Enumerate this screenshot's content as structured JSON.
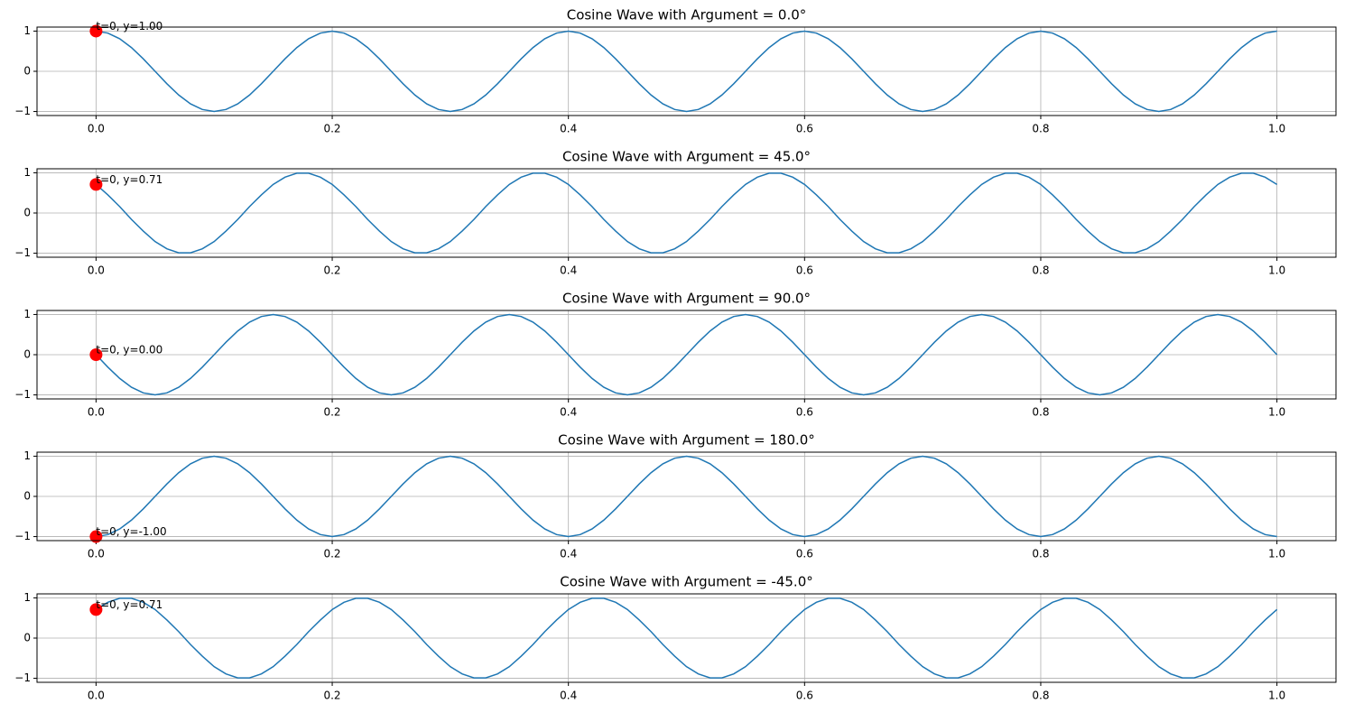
{
  "chart_data": [
    {
      "type": "line",
      "title": "Cosine Wave with Argument = 0.0°",
      "color": "#1f77b4",
      "grid": true,
      "xlim": [
        -0.05,
        1.05
      ],
      "ylim": [
        -1.1,
        1.1
      ],
      "xticks": [
        {
          "value": 0,
          "label": "0.0"
        },
        0.2,
        0.4,
        0.6,
        0.8,
        {
          "value": 1,
          "label": "1.0"
        }
      ],
      "yticks": [
        {
          "value": -1,
          "label": "−1"
        },
        0,
        1
      ],
      "x": [
        0,
        0.01,
        0.02,
        0.03,
        0.04,
        0.05,
        0.06,
        0.07,
        0.08,
        0.09,
        0.1,
        0.11,
        0.12,
        0.13,
        0.14,
        0.15,
        0.16,
        0.17,
        0.18,
        0.19,
        0.2,
        0.21,
        0.22,
        0.23,
        0.24,
        0.25,
        0.26,
        0.27,
        0.28,
        0.29,
        0.3,
        0.31,
        0.32,
        0.33,
        0.34,
        0.35,
        0.36,
        0.37,
        0.38,
        0.39,
        0.4,
        0.41,
        0.42,
        0.43,
        0.44,
        0.45,
        0.46,
        0.47,
        0.48,
        0.49,
        0.5,
        0.51,
        0.52,
        0.53,
        0.54,
        0.55,
        0.56,
        0.57,
        0.58,
        0.59,
        0.6,
        0.61,
        0.62,
        0.63,
        0.64,
        0.65,
        0.66,
        0.67,
        0.68,
        0.69,
        0.7,
        0.71,
        0.72,
        0.73,
        0.74,
        0.75,
        0.76,
        0.77,
        0.78,
        0.79,
        0.8,
        0.81,
        0.82,
        0.83,
        0.84,
        0.85,
        0.86,
        0.87,
        0.88,
        0.89,
        0.9,
        0.91,
        0.92,
        0.93,
        0.94,
        0.95,
        0.96,
        0.97,
        0.98,
        0.99,
        1
      ],
      "values": [
        1,
        0.95,
        0.81,
        0.59,
        0.31,
        0,
        -0.31,
        -0.59,
        -0.81,
        -0.95,
        -1,
        -0.95,
        -0.81,
        -0.59,
        -0.31,
        0,
        0.31,
        0.59,
        0.81,
        0.95,
        1,
        0.95,
        0.81,
        0.59,
        0.31,
        0,
        -0.31,
        -0.59,
        -0.81,
        -0.95,
        -1,
        -0.95,
        -0.81,
        -0.59,
        -0.31,
        0,
        0.31,
        0.59,
        0.81,
        0.95,
        1,
        0.95,
        0.81,
        0.59,
        0.31,
        0,
        -0.31,
        -0.59,
        -0.81,
        -0.95,
        -1,
        -0.95,
        -0.81,
        -0.59,
        -0.31,
        0,
        0.31,
        0.59,
        0.81,
        0.95,
        1,
        0.95,
        0.81,
        0.59,
        0.31,
        0,
        -0.31,
        -0.59,
        -0.81,
        -0.95,
        -1,
        -0.95,
        -0.81,
        -0.59,
        -0.31,
        0,
        0.31,
        0.59,
        0.81,
        0.95,
        1,
        0.95,
        0.81,
        0.59,
        0.31,
        0,
        -0.31,
        -0.59,
        -0.81,
        -0.95,
        -1,
        -0.95,
        -0.81,
        -0.59,
        -0.31,
        0,
        0.31,
        0.59,
        0.81,
        0.95,
        1
      ],
      "annotations": [
        {
          "text": "t=0, y=1.00",
          "x": 0,
          "y": 1,
          "color": "#ff0000"
        }
      ]
    },
    {
      "type": "line",
      "title": "Cosine Wave with Argument = 45.0°",
      "color": "#1f77b4",
      "grid": true,
      "xlim": [
        -0.05,
        1.05
      ],
      "ylim": [
        -1.1,
        1.1
      ],
      "xticks": [
        {
          "value": 0,
          "label": "0.0"
        },
        0.2,
        0.4,
        0.6,
        0.8,
        {
          "value": 1,
          "label": "1.0"
        }
      ],
      "yticks": [
        {
          "value": -1,
          "label": "−1"
        },
        0,
        1
      ],
      "x": [
        0,
        0.01,
        0.02,
        0.03,
        0.04,
        0.05,
        0.06,
        0.07,
        0.08,
        0.09,
        0.1,
        0.11,
        0.12,
        0.13,
        0.14,
        0.15,
        0.16,
        0.17,
        0.18,
        0.19,
        0.2,
        0.21,
        0.22,
        0.23,
        0.24,
        0.25,
        0.26,
        0.27,
        0.28,
        0.29,
        0.3,
        0.31,
        0.32,
        0.33,
        0.34,
        0.35,
        0.36,
        0.37,
        0.38,
        0.39,
        0.4,
        0.41,
        0.42,
        0.43,
        0.44,
        0.45,
        0.46,
        0.47,
        0.48,
        0.49,
        0.5,
        0.51,
        0.52,
        0.53,
        0.54,
        0.55,
        0.56,
        0.57,
        0.58,
        0.59,
        0.6,
        0.61,
        0.62,
        0.63,
        0.64,
        0.65,
        0.66,
        0.67,
        0.68,
        0.69,
        0.7,
        0.71,
        0.72,
        0.73,
        0.74,
        0.75,
        0.76,
        0.77,
        0.78,
        0.79,
        0.8,
        0.81,
        0.82,
        0.83,
        0.84,
        0.85,
        0.86,
        0.87,
        0.88,
        0.89,
        0.9,
        0.91,
        0.92,
        0.93,
        0.94,
        0.95,
        0.96,
        0.97,
        0.98,
        0.99,
        1
      ],
      "values": [
        0.71,
        0.45,
        0.16,
        -0.16,
        -0.45,
        -0.71,
        -0.89,
        -0.99,
        -0.99,
        -0.89,
        -0.71,
        -0.45,
        -0.16,
        0.16,
        0.45,
        0.71,
        0.89,
        0.99,
        0.99,
        0.89,
        0.71,
        0.45,
        0.16,
        -0.16,
        -0.45,
        -0.71,
        -0.89,
        -0.99,
        -0.99,
        -0.89,
        -0.71,
        -0.45,
        -0.16,
        0.16,
        0.45,
        0.71,
        0.89,
        0.99,
        0.99,
        0.89,
        0.71,
        0.45,
        0.16,
        -0.16,
        -0.45,
        -0.71,
        -0.89,
        -0.99,
        -0.99,
        -0.89,
        -0.71,
        -0.45,
        -0.16,
        0.16,
        0.45,
        0.71,
        0.89,
        0.99,
        0.99,
        0.89,
        0.71,
        0.45,
        0.16,
        -0.16,
        -0.45,
        -0.71,
        -0.89,
        -0.99,
        -0.99,
        -0.89,
        -0.71,
        -0.45,
        -0.16,
        0.16,
        0.45,
        0.71,
        0.89,
        0.99,
        0.99,
        0.89,
        0.71,
        0.45,
        0.16,
        -0.16,
        -0.45,
        -0.71,
        -0.89,
        -0.99,
        -0.99,
        -0.89,
        -0.71,
        -0.45,
        -0.16,
        0.16,
        0.45,
        0.71,
        0.89,
        0.99,
        0.99,
        0.89,
        0.71
      ],
      "annotations": [
        {
          "text": "t=0, y=0.71",
          "x": 0,
          "y": 0.71,
          "color": "#ff0000"
        }
      ]
    },
    {
      "type": "line",
      "title": "Cosine Wave with Argument = 90.0°",
      "color": "#1f77b4",
      "grid": true,
      "xlim": [
        -0.05,
        1.05
      ],
      "ylim": [
        -1.1,
        1.1
      ],
      "xticks": [
        {
          "value": 0,
          "label": "0.0"
        },
        0.2,
        0.4,
        0.6,
        0.8,
        {
          "value": 1,
          "label": "1.0"
        }
      ],
      "yticks": [
        {
          "value": -1,
          "label": "−1"
        },
        0,
        1
      ],
      "x": [
        0,
        0.01,
        0.02,
        0.03,
        0.04,
        0.05,
        0.06,
        0.07,
        0.08,
        0.09,
        0.1,
        0.11,
        0.12,
        0.13,
        0.14,
        0.15,
        0.16,
        0.17,
        0.18,
        0.19,
        0.2,
        0.21,
        0.22,
        0.23,
        0.24,
        0.25,
        0.26,
        0.27,
        0.28,
        0.29,
        0.3,
        0.31,
        0.32,
        0.33,
        0.34,
        0.35,
        0.36,
        0.37,
        0.38,
        0.39,
        0.4,
        0.41,
        0.42,
        0.43,
        0.44,
        0.45,
        0.46,
        0.47,
        0.48,
        0.49,
        0.5,
        0.51,
        0.52,
        0.53,
        0.54,
        0.55,
        0.56,
        0.57,
        0.58,
        0.59,
        0.6,
        0.61,
        0.62,
        0.63,
        0.64,
        0.65,
        0.66,
        0.67,
        0.68,
        0.69,
        0.7,
        0.71,
        0.72,
        0.73,
        0.74,
        0.75,
        0.76,
        0.77,
        0.78,
        0.79,
        0.8,
        0.81,
        0.82,
        0.83,
        0.84,
        0.85,
        0.86,
        0.87,
        0.88,
        0.89,
        0.9,
        0.91,
        0.92,
        0.93,
        0.94,
        0.95,
        0.96,
        0.97,
        0.98,
        0.99,
        1
      ],
      "values": [
        0,
        -0.31,
        -0.59,
        -0.81,
        -0.95,
        -1,
        -0.95,
        -0.81,
        -0.59,
        -0.31,
        0,
        0.31,
        0.59,
        0.81,
        0.95,
        1,
        0.95,
        0.81,
        0.59,
        0.31,
        0,
        -0.31,
        -0.59,
        -0.81,
        -0.95,
        -1,
        -0.95,
        -0.81,
        -0.59,
        -0.31,
        0,
        0.31,
        0.59,
        0.81,
        0.95,
        1,
        0.95,
        0.81,
        0.59,
        0.31,
        0,
        -0.31,
        -0.59,
        -0.81,
        -0.95,
        -1,
        -0.95,
        -0.81,
        -0.59,
        -0.31,
        0,
        0.31,
        0.59,
        0.81,
        0.95,
        1,
        0.95,
        0.81,
        0.59,
        0.31,
        0,
        -0.31,
        -0.59,
        -0.81,
        -0.95,
        -1,
        -0.95,
        -0.81,
        -0.59,
        -0.31,
        0,
        0.31,
        0.59,
        0.81,
        0.95,
        1,
        0.95,
        0.81,
        0.59,
        0.31,
        0,
        -0.31,
        -0.59,
        -0.81,
        -0.95,
        -1,
        -0.95,
        -0.81,
        -0.59,
        -0.31,
        0,
        0.31,
        0.59,
        0.81,
        0.95,
        1,
        0.95,
        0.81,
        0.59,
        0.31,
        0
      ],
      "annotations": [
        {
          "text": "t=0, y=0.00",
          "x": 0,
          "y": 0,
          "color": "#ff0000"
        }
      ]
    },
    {
      "type": "line",
      "title": "Cosine Wave with Argument = 180.0°",
      "color": "#1f77b4",
      "grid": true,
      "xlim": [
        -0.05,
        1.05
      ],
      "ylim": [
        -1.1,
        1.1
      ],
      "xticks": [
        {
          "value": 0,
          "label": "0.0"
        },
        0.2,
        0.4,
        0.6,
        0.8,
        {
          "value": 1,
          "label": "1.0"
        }
      ],
      "yticks": [
        {
          "value": -1,
          "label": "−1"
        },
        0,
        1
      ],
      "x": [
        0,
        0.01,
        0.02,
        0.03,
        0.04,
        0.05,
        0.06,
        0.07,
        0.08,
        0.09,
        0.1,
        0.11,
        0.12,
        0.13,
        0.14,
        0.15,
        0.16,
        0.17,
        0.18,
        0.19,
        0.2,
        0.21,
        0.22,
        0.23,
        0.24,
        0.25,
        0.26,
        0.27,
        0.28,
        0.29,
        0.3,
        0.31,
        0.32,
        0.33,
        0.34,
        0.35,
        0.36,
        0.37,
        0.38,
        0.39,
        0.4,
        0.41,
        0.42,
        0.43,
        0.44,
        0.45,
        0.46,
        0.47,
        0.48,
        0.49,
        0.5,
        0.51,
        0.52,
        0.53,
        0.54,
        0.55,
        0.56,
        0.57,
        0.58,
        0.59,
        0.6,
        0.61,
        0.62,
        0.63,
        0.64,
        0.65,
        0.66,
        0.67,
        0.68,
        0.69,
        0.7,
        0.71,
        0.72,
        0.73,
        0.74,
        0.75,
        0.76,
        0.77,
        0.78,
        0.79,
        0.8,
        0.81,
        0.82,
        0.83,
        0.84,
        0.85,
        0.86,
        0.87,
        0.88,
        0.89,
        0.9,
        0.91,
        0.92,
        0.93,
        0.94,
        0.95,
        0.96,
        0.97,
        0.98,
        0.99,
        1
      ],
      "values": [
        -1,
        -0.95,
        -0.81,
        -0.59,
        -0.31,
        0,
        0.31,
        0.59,
        0.81,
        0.95,
        1,
        0.95,
        0.81,
        0.59,
        0.31,
        0,
        -0.31,
        -0.59,
        -0.81,
        -0.95,
        -1,
        -0.95,
        -0.81,
        -0.59,
        -0.31,
        0,
        0.31,
        0.59,
        0.81,
        0.95,
        1,
        0.95,
        0.81,
        0.59,
        0.31,
        0,
        -0.31,
        -0.59,
        -0.81,
        -0.95,
        -1,
        -0.95,
        -0.81,
        -0.59,
        -0.31,
        0,
        0.31,
        0.59,
        0.81,
        0.95,
        1,
        0.95,
        0.81,
        0.59,
        0.31,
        0,
        -0.31,
        -0.59,
        -0.81,
        -0.95,
        -1,
        -0.95,
        -0.81,
        -0.59,
        -0.31,
        0,
        0.31,
        0.59,
        0.81,
        0.95,
        1,
        0.95,
        0.81,
        0.59,
        0.31,
        0,
        -0.31,
        -0.59,
        -0.81,
        -0.95,
        -1,
        -0.95,
        -0.81,
        -0.59,
        -0.31,
        0,
        0.31,
        0.59,
        0.81,
        0.95,
        1,
        0.95,
        0.81,
        0.59,
        0.31,
        0,
        -0.31,
        -0.59,
        -0.81,
        -0.95,
        -1
      ],
      "annotations": [
        {
          "text": "t=0, y=-1.00",
          "x": 0,
          "y": -1,
          "color": "#ff0000"
        }
      ]
    },
    {
      "type": "line",
      "title": "Cosine Wave with Argument = -45.0°",
      "color": "#1f77b4",
      "grid": true,
      "xlim": [
        -0.05,
        1.05
      ],
      "ylim": [
        -1.1,
        1.1
      ],
      "xticks": [
        {
          "value": 0,
          "label": "0.0"
        },
        0.2,
        0.4,
        0.6,
        0.8,
        {
          "value": 1,
          "label": "1.0"
        }
      ],
      "yticks": [
        {
          "value": -1,
          "label": "−1"
        },
        0,
        1
      ],
      "x": [
        0,
        0.01,
        0.02,
        0.03,
        0.04,
        0.05,
        0.06,
        0.07,
        0.08,
        0.09,
        0.1,
        0.11,
        0.12,
        0.13,
        0.14,
        0.15,
        0.16,
        0.17,
        0.18,
        0.19,
        0.2,
        0.21,
        0.22,
        0.23,
        0.24,
        0.25,
        0.26,
        0.27,
        0.28,
        0.29,
        0.3,
        0.31,
        0.32,
        0.33,
        0.34,
        0.35,
        0.36,
        0.37,
        0.38,
        0.39,
        0.4,
        0.41,
        0.42,
        0.43,
        0.44,
        0.45,
        0.46,
        0.47,
        0.48,
        0.49,
        0.5,
        0.51,
        0.52,
        0.53,
        0.54,
        0.55,
        0.56,
        0.57,
        0.58,
        0.59,
        0.6,
        0.61,
        0.62,
        0.63,
        0.64,
        0.65,
        0.66,
        0.67,
        0.68,
        0.69,
        0.7,
        0.71,
        0.72,
        0.73,
        0.74,
        0.75,
        0.76,
        0.77,
        0.78,
        0.79,
        0.8,
        0.81,
        0.82,
        0.83,
        0.84,
        0.85,
        0.86,
        0.87,
        0.88,
        0.89,
        0.9,
        0.91,
        0.92,
        0.93,
        0.94,
        0.95,
        0.96,
        0.97,
        0.98,
        0.99,
        1
      ],
      "values": [
        0.71,
        0.89,
        0.99,
        0.99,
        0.89,
        0.71,
        0.45,
        0.16,
        -0.16,
        -0.45,
        -0.71,
        -0.89,
        -0.99,
        -0.99,
        -0.89,
        -0.71,
        -0.45,
        -0.16,
        0.16,
        0.45,
        0.71,
        0.89,
        0.99,
        0.99,
        0.89,
        0.71,
        0.45,
        0.16,
        -0.16,
        -0.45,
        -0.71,
        -0.89,
        -0.99,
        -0.99,
        -0.89,
        -0.71,
        -0.45,
        -0.16,
        0.16,
        0.45,
        0.71,
        0.89,
        0.99,
        0.99,
        0.89,
        0.71,
        0.45,
        0.16,
        -0.16,
        -0.45,
        -0.71,
        -0.89,
        -0.99,
        -0.99,
        -0.89,
        -0.71,
        -0.45,
        -0.16,
        0.16,
        0.45,
        0.71,
        0.89,
        0.99,
        0.99,
        0.89,
        0.71,
        0.45,
        0.16,
        -0.16,
        -0.45,
        -0.71,
        -0.89,
        -0.99,
        -0.99,
        -0.89,
        -0.71,
        -0.45,
        -0.16,
        0.16,
        0.45,
        0.71,
        0.89,
        0.99,
        0.99,
        0.89,
        0.71,
        0.45,
        0.16,
        -0.16,
        -0.45,
        -0.71,
        -0.89,
        -0.99,
        -0.99,
        -0.89,
        -0.71,
        -0.45,
        -0.16,
        0.16,
        0.45,
        0.71
      ],
      "annotations": [
        {
          "text": "t=0, y=0.71",
          "x": 0,
          "y": 0.71,
          "color": "#ff0000"
        }
      ]
    }
  ]
}
